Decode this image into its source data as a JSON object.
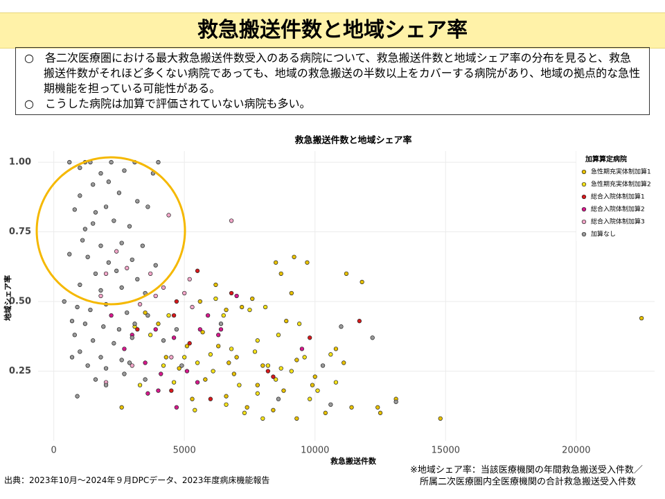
{
  "header": {
    "title": "救急搬送件数と地域シェア率"
  },
  "notes": [
    "○　各二次医療圏における最大救急搬送件数受入のある病院について、救急搬送件数と地域シェア率の分布を見ると、救急搬送件数がそれほど多くない病院であっても、地域の救急搬送の半数以上をカバーする病院があり、地域の拠点的な急性期機能を担っている可能性がある。",
    "○　こうした病院は加算で評価されていない病院も多い。"
  ],
  "chart_data": {
    "type": "scatter",
    "title": "救急搬送件数と地域シェア率",
    "x_label": "救急搬送件数",
    "y_label": "地域シェア率",
    "legend_title": "加算算定病院",
    "legend": "upper right",
    "grid": true,
    "xlim": [
      -600,
      23000
    ],
    "ylim": [
      0,
      1.04
    ],
    "xticks": [
      0,
      5000,
      10000,
      15000,
      20000
    ],
    "yticks": [
      {
        "value": 0.25,
        "label": "0.25"
      },
      {
        "value": 0.5,
        "label": "0.50"
      },
      {
        "value": 0.75,
        "label": "0.75"
      },
      {
        "value": 1,
        "label": "1.00"
      }
    ],
    "series": [
      {
        "name": "急性期充実体制加算1",
        "color": "#e8c100",
        "x": [
          9200,
          8500,
          8700,
          9700,
          11200,
          11800,
          22500,
          9100,
          7600,
          6600,
          7200,
          8900,
          5700,
          6300,
          7000,
          8000,
          9300,
          10000,
          10800,
          11100,
          12500,
          13100,
          14800,
          12400,
          6600,
          7400,
          8400,
          9300,
          10400,
          5800,
          6900,
          7800,
          8800,
          9900,
          11400,
          4300,
          5100,
          3500,
          4000,
          5600,
          6200,
          4800,
          5300,
          6700,
          2600
        ],
        "values": [
          0.66,
          0.64,
          0.6,
          0.64,
          0.6,
          0.57,
          0.44,
          0.53,
          0.51,
          0.47,
          0.48,
          0.43,
          0.39,
          0.34,
          0.3,
          0.27,
          0.29,
          0.23,
          0.33,
          0.28,
          0.1,
          0.15,
          0.08,
          0.12,
          0.16,
          0.12,
          0.11,
          0.08,
          0.1,
          0.22,
          0.24,
          0.2,
          0.18,
          0.2,
          0.12,
          0.3,
          0.34,
          0.46,
          0.42,
          0.5,
          0.56,
          0.26,
          0.15,
          0.28,
          0.12
        ]
      },
      {
        "name": "急性期充実体制加算2",
        "color": "#f5e21a",
        "x": [
          6200,
          6500,
          7500,
          8100,
          8600,
          7800,
          9400,
          6000,
          6800,
          7700,
          8200,
          8700,
          9600,
          10600,
          5500,
          6100,
          7100,
          7800,
          8500,
          9100,
          10100,
          10800,
          5400,
          6600,
          7300,
          8000,
          9800,
          4200,
          4600,
          5000,
          3100,
          3700,
          4400,
          3300
        ],
        "values": [
          0.51,
          0.45,
          0.47,
          0.48,
          0.38,
          0.36,
          0.42,
          0.31,
          0.33,
          0.32,
          0.27,
          0.26,
          0.3,
          0.31,
          0.28,
          0.25,
          0.2,
          0.17,
          0.22,
          0.25,
          0.18,
          0.21,
          0.11,
          0.13,
          0.1,
          0.08,
          0.15,
          0.27,
          0.21,
          0.3,
          0.41,
          0.38,
          0.45,
          0.2
        ]
      },
      {
        "name": "総合入院体制加算1",
        "color": "#d7191c",
        "x": [
          5500,
          4600,
          6800,
          11700,
          8200,
          5200,
          4500,
          6000,
          8400,
          9800,
          3200,
          4700
        ],
        "values": [
          0.61,
          0.45,
          0.53,
          0.43,
          0.25,
          0.35,
          0.18,
          0.15,
          0.23,
          0.37,
          0.4,
          0.5
        ]
      },
      {
        "name": "総合入院体制加算2",
        "color": "#d6198c",
        "x": [
          3000,
          3900,
          4600,
          5600,
          5900,
          6300,
          7000,
          2700,
          3500,
          4100,
          5100,
          4000,
          3600,
          5500,
          6400,
          2200,
          9500,
          4700
        ],
        "values": [
          0.38,
          0.4,
          0.37,
          0.4,
          0.45,
          0.38,
          0.52,
          0.33,
          0.28,
          0.24,
          0.25,
          0.18,
          0.17,
          0.21,
          0.4,
          0.45,
          0.33,
          0.12
        ]
      },
      {
        "name": "総合入院体制加算3",
        "color": "#f2a7c9",
        "x": [
          6800,
          4400,
          4200,
          3700,
          2400,
          2000,
          3900,
          5000,
          5200,
          3300,
          2800,
          1800,
          2000,
          3000,
          4500,
          5300
        ],
        "values": [
          0.79,
          0.81,
          0.55,
          0.6,
          0.68,
          0.6,
          0.52,
          0.53,
          0.58,
          0.49,
          0.62,
          0.52,
          0.21,
          0.27,
          0.3,
          0.48
        ]
      },
      {
        "name": "加算なし",
        "color": "#9a9a9a",
        "x": [
          600,
          1000,
          1200,
          1400,
          2200,
          3100,
          4000,
          1800,
          2700,
          3800,
          2100,
          1500,
          2500,
          1000,
          3200,
          800,
          1600,
          2000,
          3600,
          1200,
          1500,
          2300,
          2900,
          1100,
          1800,
          2600,
          3400,
          600,
          1300,
          2100,
          3000,
          3900,
          1600,
          2400,
          3200,
          1000,
          1800,
          2600,
          3500,
          400,
          900,
          1400,
          2000,
          2800,
          3600,
          700,
          1200,
          1900,
          2500,
          3100,
          800,
          1500,
          2300,
          3000,
          1000,
          1800,
          2600,
          700,
          1300,
          2000,
          2900,
          1600,
          2700,
          900,
          2000,
          3500,
          4200,
          4700,
          6400,
          8600,
          10600,
          11000,
          12200,
          13100,
          10300,
          4900
        ],
        "values": [
          1.0,
          0.98,
          1.0,
          1.0,
          1.0,
          1.0,
          1.0,
          0.96,
          0.97,
          0.96,
          0.93,
          0.92,
          0.89,
          0.88,
          0.86,
          0.83,
          0.82,
          0.84,
          0.84,
          0.76,
          0.78,
          0.79,
          0.77,
          0.72,
          0.7,
          0.71,
          0.7,
          0.67,
          0.66,
          0.64,
          0.65,
          0.63,
          0.6,
          0.61,
          0.58,
          0.56,
          0.54,
          0.55,
          0.53,
          0.5,
          0.48,
          0.47,
          0.49,
          0.46,
          0.45,
          0.43,
          0.42,
          0.41,
          0.4,
          0.42,
          0.38,
          0.36,
          0.35,
          0.37,
          0.32,
          0.3,
          0.29,
          0.3,
          0.27,
          0.26,
          0.28,
          0.22,
          0.24,
          0.16,
          0.2,
          0.22,
          0.36,
          0.4,
          0.42,
          0.15,
          0.13,
          0.41,
          0.37,
          0.14,
          0.27,
          0.27
        ]
      }
    ]
  },
  "footer": {
    "source": "出典：2023年10月～2024年９月DPCデータ、2023年度病床機能報告",
    "note": [
      "※地域シェア率：当該医療機関の年間救急搬送受入件数／",
      "所属二次医療圏内全医療機関の合計救急搬送受入件数"
    ]
  }
}
